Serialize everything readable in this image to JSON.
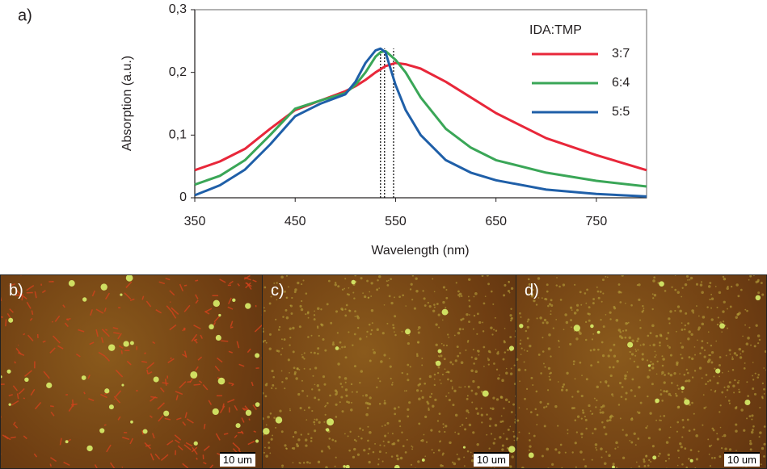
{
  "panel_label": "a)",
  "chart_data": {
    "type": "line",
    "x": [
      350,
      375,
      400,
      425,
      450,
      475,
      500,
      510,
      520,
      530,
      535,
      540,
      550,
      560,
      575,
      600,
      625,
      650,
      700,
      750,
      800
    ],
    "series": [
      {
        "name": "3:7",
        "color": "#e8273a",
        "values": [
          0.044,
          0.058,
          0.078,
          0.11,
          0.14,
          0.155,
          0.17,
          0.178,
          0.188,
          0.2,
          0.205,
          0.21,
          0.215,
          0.213,
          0.206,
          0.185,
          0.16,
          0.135,
          0.095,
          0.068,
          0.044
        ]
      },
      {
        "name": "6:4",
        "color": "#3aa657",
        "values": [
          0.021,
          0.035,
          0.06,
          0.1,
          0.142,
          0.155,
          0.167,
          0.18,
          0.2,
          0.225,
          0.232,
          0.234,
          0.22,
          0.2,
          0.16,
          0.11,
          0.08,
          0.06,
          0.04,
          0.027,
          0.018
        ]
      },
      {
        "name": "5:5",
        "color": "#1f5fa8",
        "values": [
          0.004,
          0.02,
          0.045,
          0.085,
          0.13,
          0.15,
          0.165,
          0.185,
          0.215,
          0.235,
          0.238,
          0.232,
          0.18,
          0.14,
          0.1,
          0.06,
          0.04,
          0.028,
          0.013,
          0.006,
          0.002
        ]
      }
    ],
    "peak_lines": [
      535,
      539,
      548
    ],
    "legend_title": "IDA:TMP",
    "legend": "upper right",
    "xlabel": "Wavelength (nm)",
    "ylabel": "Absorption (a.u.)",
    "xlim": [
      350,
      800
    ],
    "xticks": [
      350,
      450,
      550,
      650,
      750
    ],
    "ylim": [
      0,
      0.3
    ],
    "yticks": [
      0,
      {
        "value": 0.1,
        "label": "0,1"
      },
      {
        "value": 0.2,
        "label": "0,2"
      },
      {
        "value": 0.3,
        "label": "0,3"
      }
    ]
  },
  "images": [
    {
      "label": "b)",
      "scale_bar": "10 um"
    },
    {
      "label": "c)",
      "scale_bar": "10 um"
    },
    {
      "label": "d)",
      "scale_bar": "10 um"
    }
  ]
}
